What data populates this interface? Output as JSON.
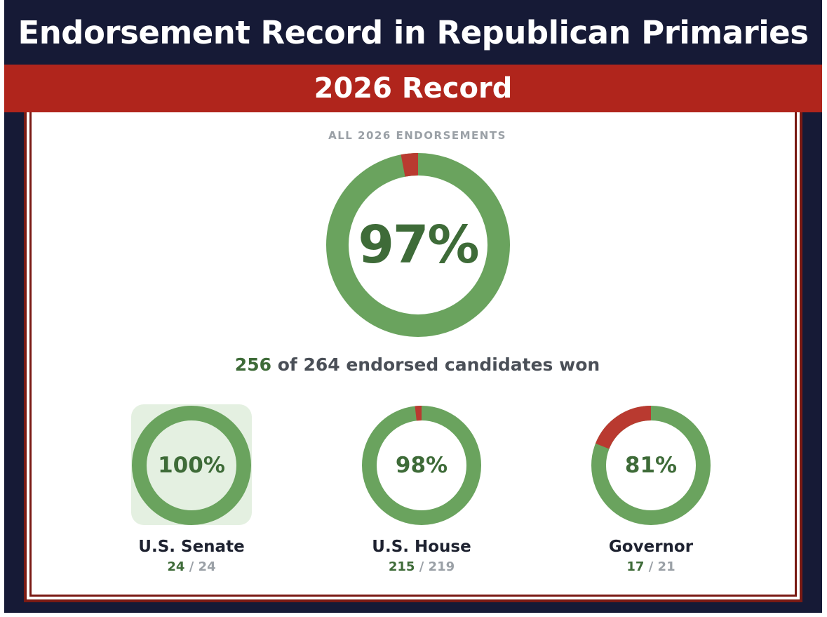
{
  "header": {
    "title": "Endorsement Record in Republican Primaries",
    "banner": "2026 Record"
  },
  "colors": {
    "won": "#6aa35e",
    "lost": "#b93a30",
    "navy": "#161a36",
    "red_banner": "#b0251c",
    "highlight": "#e4f0e1"
  },
  "chart_data": [
    {
      "type": "pie",
      "label": "ALL 2026 ENDORSEMENTS",
      "percent_label": "97%",
      "won": 256,
      "total": 264,
      "summary": {
        "won_text": "256",
        "rest_text": " of 264 endorsed candidates won"
      },
      "categories": [
        "won",
        "lost"
      ],
      "values": [
        256,
        8
      ]
    },
    {
      "type": "pie",
      "name": "U.S. Senate",
      "percent_label": "100%",
      "won": 24,
      "total": 24,
      "won_text": "24",
      "total_text": " / 24",
      "highlighted": true,
      "categories": [
        "won",
        "lost"
      ],
      "values": [
        24,
        0
      ]
    },
    {
      "type": "pie",
      "name": "U.S. House",
      "percent_label": "98%",
      "won": 215,
      "total": 219,
      "won_text": "215",
      "total_text": " / 219",
      "highlighted": false,
      "categories": [
        "won",
        "lost"
      ],
      "values": [
        215,
        4
      ]
    },
    {
      "type": "pie",
      "name": "Governor",
      "percent_label": "81%",
      "won": 17,
      "total": 21,
      "won_text": "17",
      "total_text": " / 21",
      "highlighted": false,
      "categories": [
        "won",
        "lost"
      ],
      "values": [
        17,
        4
      ]
    }
  ]
}
